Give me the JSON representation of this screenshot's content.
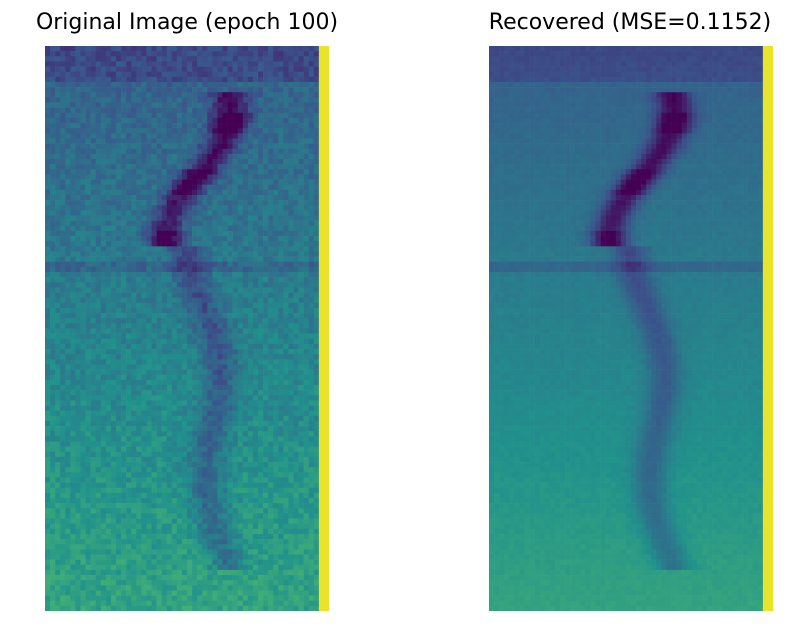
{
  "chart_data": [
    {
      "type": "heatmap",
      "title": "Original Image (epoch 100)",
      "colormap": "viridis",
      "axes": "off",
      "content": "spectrogram with a dark vertical vocal trace and bright last column"
    },
    {
      "type": "heatmap",
      "title": "Recovered (MSE=0.1152)",
      "colormap": "viridis",
      "axes": "off",
      "content": "smoothed reconstruction of the spectrogram with bright last column"
    }
  ],
  "colors": {
    "viridis_dark": "#440154",
    "viridis_purple": "#3b528b",
    "viridis_teal": "#21918c",
    "viridis_green": "#2ab07f",
    "viridis_yellow": "#fde725"
  }
}
